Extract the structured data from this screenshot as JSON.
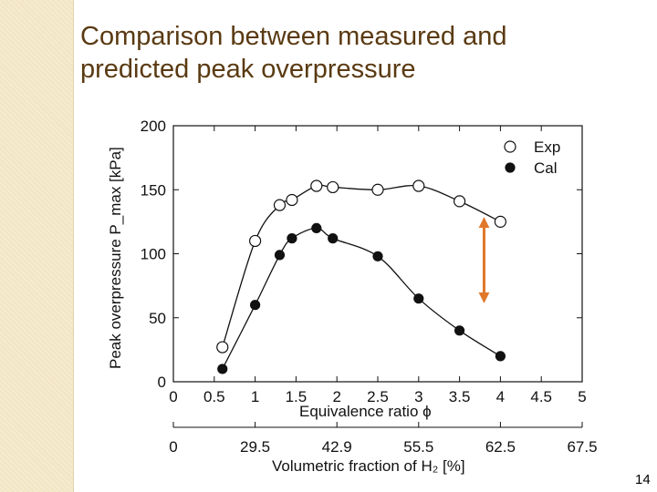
{
  "slide": {
    "title_line1": "Comparison between measured and",
    "title_line2": "predicted peak overpressure",
    "page_number": "14"
  },
  "colors": {
    "title": "#5a3a12",
    "sidebar": "#f2e6c4",
    "arrow": "#e0782a",
    "markers": "#111111"
  },
  "chart_data": {
    "type": "scatter",
    "title": "",
    "ylabel": "Peak overpressure P_max [kPa]",
    "xlabel": "Equivalence ratio ϕ",
    "xlim": [
      0,
      5
    ],
    "ylim": [
      0,
      200
    ],
    "x_ticks": [
      "0",
      "0.5",
      "1",
      "1.5",
      "2",
      "2.5",
      "3",
      "3.5",
      "4",
      "4.5",
      "5"
    ],
    "y_ticks": [
      "0",
      "50",
      "100",
      "150",
      "200"
    ],
    "secondary_x": {
      "label": "Volumetric fraction of H₂ [%]",
      "ticks": [
        {
          "x": 0,
          "label": "0"
        },
        {
          "x": 1,
          "label": "29.5"
        },
        {
          "x": 2,
          "label": "42.9"
        },
        {
          "x": 3,
          "label": "55.5"
        },
        {
          "x": 4,
          "label": "62.5"
        },
        {
          "x": 5,
          "label": "67.5"
        }
      ]
    },
    "legend": "top-right",
    "series": [
      {
        "name": "Exp",
        "marker": "open-circle",
        "x": [
          0.6,
          1.0,
          1.3,
          1.45,
          1.75,
          1.95,
          2.5,
          3.0,
          3.5,
          4.0
        ],
        "y": [
          27,
          110,
          138,
          142,
          153,
          152,
          150,
          153,
          141,
          125
        ]
      },
      {
        "name": "Cal",
        "marker": "filled-circle",
        "x": [
          0.6,
          1.0,
          1.3,
          1.45,
          1.75,
          1.95,
          2.5,
          3.0,
          3.5,
          4.0
        ],
        "y": [
          10,
          60,
          99,
          112,
          120,
          112,
          98,
          65,
          40,
          20
        ]
      }
    ],
    "annotation": {
      "type": "double-arrow",
      "x": 3.8,
      "y_from": 127,
      "y_to": 63
    }
  }
}
